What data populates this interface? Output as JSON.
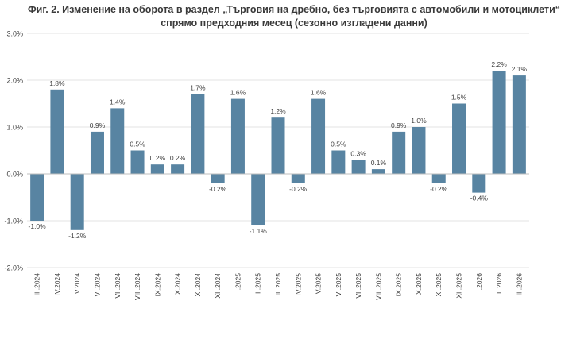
{
  "chart_data": {
    "type": "bar",
    "title_line1": "Фиг. 2. Изменение на оборота в раздел „Търговия на дребно, без търговията с автомобили и мотоциклети“",
    "title_line2": "спрямо предходния месец (сезонно изгладени данни)",
    "categories": [
      "III.2024",
      "IV.2024",
      "V.2024",
      "VI.2024",
      "VII.2024",
      "VIII.2024",
      "IX.2024",
      "X.2024",
      "XI.2024",
      "XII.2024",
      "I.2025",
      "II.2025",
      "III.2025",
      "IV.2025",
      "V.2025",
      "VI.2025",
      "VII.2025",
      "VIII.2025",
      "IX.2025",
      "X.2025",
      "XI.2025",
      "XII.2025",
      "I.2026",
      "II.2026",
      "III.2026"
    ],
    "values": [
      -1.0,
      1.8,
      -1.2,
      0.9,
      1.4,
      0.5,
      0.2,
      0.2,
      1.7,
      -0.2,
      1.6,
      -1.1,
      1.2,
      -0.2,
      1.6,
      0.5,
      0.3,
      0.1,
      0.9,
      1.0,
      -0.2,
      1.5,
      -0.4,
      2.2,
      2.1
    ],
    "data_labels": [
      "-1.0%",
      "1.8%",
      "-1.2%",
      "0.9%",
      "1.4%",
      "0.5%",
      "0.2%",
      "0.2%",
      "1.7%",
      "-0.2%",
      "1.6%",
      "-1.1%",
      "1.2%",
      "-0.2%",
      "1.6%",
      "0.5%",
      "0.3%",
      "0.1%",
      "0.9%",
      "1.0%",
      "-0.2%",
      "1.5%",
      "-0.4%",
      "2.2%",
      "2.1%"
    ],
    "yticks": [
      3.0,
      2.0,
      1.0,
      0.0,
      -1.0,
      -2.0
    ],
    "ytick_labels": [
      "3.0%",
      "2.0%",
      "1.0%",
      "0.0%",
      "-1.0%",
      "-2.0%"
    ],
    "ylim": [
      -2.0,
      3.0
    ],
    "grid": true,
    "legend": "none",
    "bar_color": "#5884a2",
    "grid_color": "#e3e3e3",
    "axis_color": "#bfbfbf",
    "text_color": "#404040"
  }
}
